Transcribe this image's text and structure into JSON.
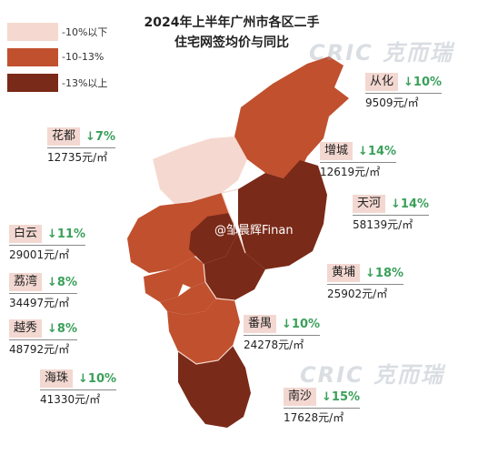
{
  "title_line1": "2024年上半年广州市各区二手",
  "title_line2": "住宅网签均价与同比",
  "legend": [
    {
      "label": "-10%以下",
      "color": "#f5d9d0"
    },
    {
      "label": "-10-13%",
      "color": "#c1502e"
    },
    {
      "label": "-13%以上",
      "color": "#7a2a18"
    }
  ],
  "districts": [
    {
      "key": "conghua",
      "name": "从化",
      "change": "↓10%",
      "price": "9509元/㎡"
    },
    {
      "key": "huadu",
      "name": "花都",
      "change": "↓7%",
      "price": "12735元/㎡"
    },
    {
      "key": "zengcheng",
      "name": "增城",
      "change": "↓14%",
      "price": "12619元/㎡"
    },
    {
      "key": "tianhe",
      "name": "天河",
      "change": "↓14%",
      "price": "58139元/㎡"
    },
    {
      "key": "baiyun",
      "name": "白云",
      "change": "↓11%",
      "price": "29001元/㎡"
    },
    {
      "key": "liwan",
      "name": "荔湾",
      "change": "↓8%",
      "price": "34497元/㎡"
    },
    {
      "key": "huangpu",
      "name": "黄埔",
      "change": "↓18%",
      "price": "25902元/㎡"
    },
    {
      "key": "yuexiu",
      "name": "越秀",
      "change": "↓8%",
      "price": "48792元/㎡"
    },
    {
      "key": "panyu",
      "name": "番禺",
      "change": "↓10%",
      "price": "24278元/㎡"
    },
    {
      "key": "haizhu",
      "name": "海珠",
      "change": "↓10%",
      "price": "41330元/㎡"
    },
    {
      "key": "nansha",
      "name": "南沙",
      "change": "↓15%",
      "price": "17628元/㎡"
    }
  ],
  "watermark_text": "@邹晨辉Finan",
  "brand_mark": "CRIC 克而瑞"
}
